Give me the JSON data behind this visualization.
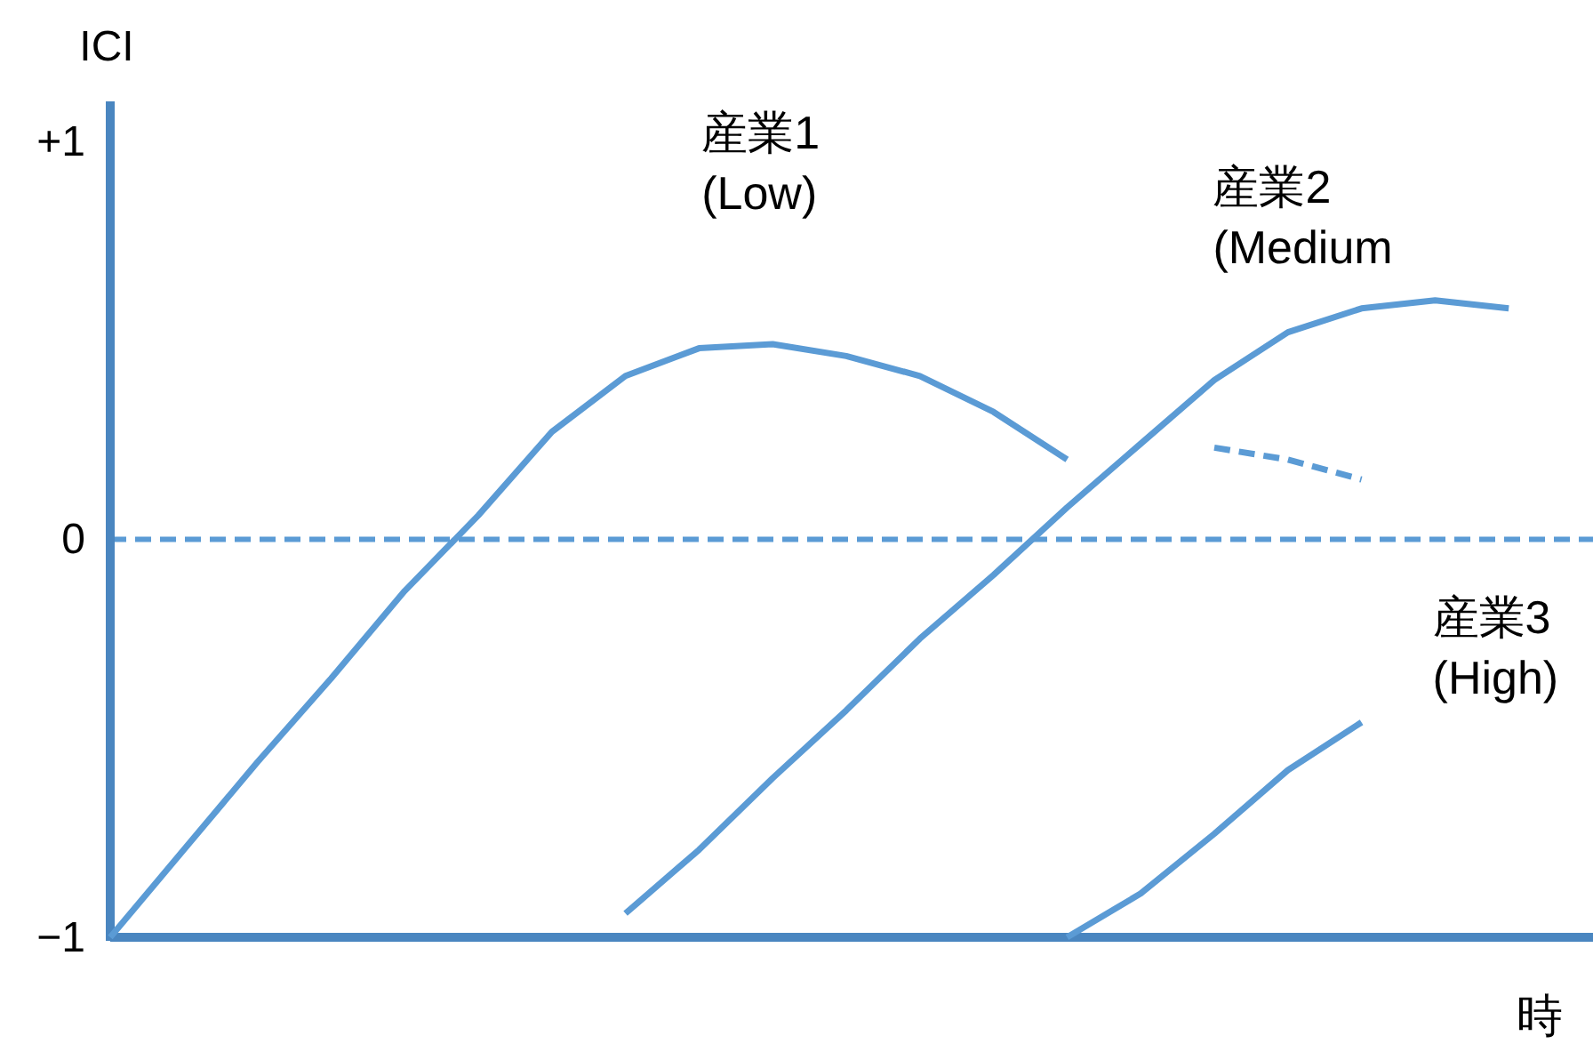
{
  "chart_data": {
    "type": "line",
    "ylabel": "ICI",
    "xlabel": "時",
    "categories": [
      null,
      null,
      null,
      null,
      null,
      null,
      null,
      null,
      null,
      null,
      null,
      null,
      null,
      null,
      null,
      null,
      null,
      null,
      null,
      null,
      null
    ],
    "series": [
      {
        "name": "産業1\n(Low)",
        "color": "#5b9bd5",
        "values": [
          -1,
          -0.78,
          -0.56,
          -0.35,
          -0.13,
          0.06,
          0.27,
          0.41,
          0.48,
          0.49,
          0.46,
          0.41,
          0.32,
          0.2,
          null,
          null,
          null,
          null,
          null,
          null,
          null
        ]
      },
      {
        "name": "産業2\n(Medium",
        "color": "#5b9bd5",
        "values": [
          null,
          null,
          null,
          null,
          null,
          null,
          null,
          -0.94,
          -0.78,
          -0.6,
          -0.43,
          -0.25,
          -0.09,
          0.08,
          0.24,
          0.4,
          0.52,
          0.58,
          0.6,
          0.58,
          null
        ]
      },
      {
        "color": "#5b9bd5",
        "line_style": "dashed",
        "values": [
          null,
          null,
          null,
          null,
          null,
          null,
          null,
          null,
          null,
          null,
          null,
          null,
          null,
          null,
          null,
          0.23,
          0.2,
          0.15,
          null,
          null,
          null
        ]
      },
      {
        "name": "産業3\n(High)",
        "color": "#5b9bd5",
        "values": [
          null,
          null,
          null,
          null,
          null,
          null,
          null,
          null,
          null,
          null,
          null,
          null,
          null,
          -1,
          -0.89,
          -0.74,
          -0.58,
          -0.46,
          null,
          null,
          null
        ]
      }
    ],
    "ylim": [
      -1,
      1.1
    ],
    "yticks": [
      {
        "value": 1,
        "label": "+1"
      },
      0,
      {
        "value": -1,
        "label": "−1"
      }
    ],
    "ref_lines": [
      {
        "axis": "y",
        "value": 0,
        "color": "#5b9bd5",
        "line_style": "dashed"
      }
    ],
    "marker": "none",
    "line_style": "solid"
  }
}
